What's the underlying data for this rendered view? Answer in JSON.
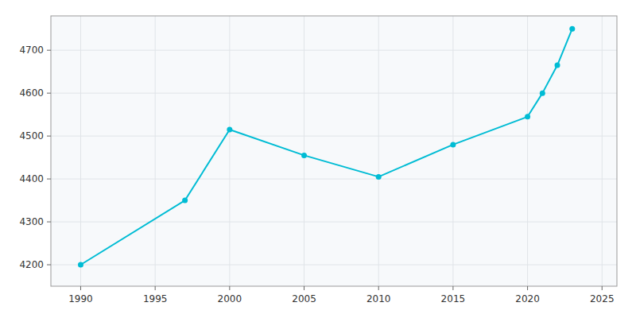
{
  "chart_data": {
    "type": "line",
    "x": [
      1990,
      1997,
      2000,
      2005,
      2010,
      2015,
      2020,
      2021,
      2022,
      2023
    ],
    "values": [
      4200,
      4350,
      4515,
      4455,
      4405,
      4480,
      4545,
      4600,
      4665,
      4750
    ],
    "color": "#00BCD4",
    "marker": "circle",
    "xlim": [
      1988,
      2026
    ],
    "ylim": [
      4150,
      4780
    ],
    "xticks": [
      1990,
      1995,
      2000,
      2005,
      2010,
      2015,
      2020,
      2025
    ],
    "yticks": [
      4200,
      4300,
      4400,
      4500,
      4600,
      4700
    ],
    "grid": true
  }
}
